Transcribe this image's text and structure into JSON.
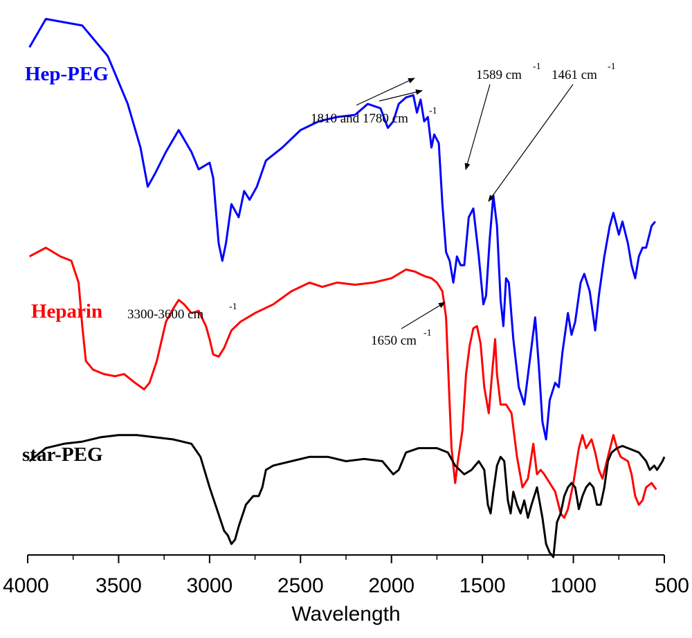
{
  "chart_data": {
    "type": "line",
    "title": "",
    "xlabel": "Wavelength",
    "ylabel": "",
    "xlim": [
      4000,
      500
    ],
    "x_reversed": true,
    "xticks": [
      "4000",
      "3500",
      "3000",
      "2500",
      "2000",
      "1500",
      "1000",
      "500"
    ],
    "grid": false,
    "series": [
      {
        "name": "Hep-PEG",
        "color": "#0000ff",
        "points": [
          [
            3990,
            0.92
          ],
          [
            3900,
            0.985
          ],
          [
            3700,
            0.97
          ],
          [
            3560,
            0.9
          ],
          [
            3450,
            0.79
          ],
          [
            3380,
            0.69
          ],
          [
            3340,
            0.6
          ],
          [
            3300,
            0.63
          ],
          [
            3240,
            0.68
          ],
          [
            3170,
            0.73
          ],
          [
            3100,
            0.68
          ],
          [
            3060,
            0.64
          ],
          [
            3000,
            0.655
          ],
          [
            2980,
            0.62
          ],
          [
            2950,
            0.47
          ],
          [
            2930,
            0.43
          ],
          [
            2910,
            0.47
          ],
          [
            2880,
            0.56
          ],
          [
            2840,
            0.53
          ],
          [
            2810,
            0.59
          ],
          [
            2780,
            0.57
          ],
          [
            2740,
            0.6
          ],
          [
            2690,
            0.66
          ],
          [
            2600,
            0.69
          ],
          [
            2500,
            0.73
          ],
          [
            2400,
            0.75
          ],
          [
            2300,
            0.76
          ],
          [
            2200,
            0.765
          ],
          [
            2130,
            0.79
          ],
          [
            2060,
            0.78
          ],
          [
            2020,
            0.735
          ],
          [
            1990,
            0.75
          ],
          [
            1960,
            0.79
          ],
          [
            1920,
            0.805
          ],
          [
            1880,
            0.81
          ],
          [
            1860,
            0.77
          ],
          [
            1840,
            0.8
          ],
          [
            1820,
            0.75
          ],
          [
            1800,
            0.76
          ],
          [
            1780,
            0.69
          ],
          [
            1765,
            0.72
          ],
          [
            1740,
            0.7
          ],
          [
            1720,
            0.56
          ],
          [
            1700,
            0.45
          ],
          [
            1680,
            0.43
          ],
          [
            1660,
            0.38
          ],
          [
            1640,
            0.44
          ],
          [
            1620,
            0.42
          ],
          [
            1600,
            0.42
          ],
          [
            1575,
            0.53
          ],
          [
            1550,
            0.55
          ],
          [
            1520,
            0.44
          ],
          [
            1495,
            0.33
          ],
          [
            1480,
            0.35
          ],
          [
            1460,
            0.48
          ],
          [
            1440,
            0.58
          ],
          [
            1420,
            0.51
          ],
          [
            1400,
            0.34
          ],
          [
            1385,
            0.28
          ],
          [
            1370,
            0.39
          ],
          [
            1355,
            0.38
          ],
          [
            1330,
            0.25
          ],
          [
            1300,
            0.14
          ],
          [
            1270,
            0.1
          ],
          [
            1240,
            0.2
          ],
          [
            1210,
            0.3
          ],
          [
            1190,
            0.19
          ],
          [
            1170,
            0.06
          ],
          [
            1150,
            0.02
          ],
          [
            1130,
            0.11
          ],
          [
            1100,
            0.15
          ],
          [
            1080,
            0.14
          ],
          [
            1060,
            0.22
          ],
          [
            1030,
            0.31
          ],
          [
            1010,
            0.26
          ],
          [
            990,
            0.29
          ],
          [
            960,
            0.38
          ],
          [
            940,
            0.4
          ],
          [
            910,
            0.36
          ],
          [
            880,
            0.27
          ],
          [
            860,
            0.35
          ],
          [
            830,
            0.44
          ],
          [
            800,
            0.51
          ],
          [
            780,
            0.54
          ],
          [
            750,
            0.49
          ],
          [
            730,
            0.52
          ],
          [
            700,
            0.47
          ],
          [
            680,
            0.42
          ],
          [
            660,
            0.39
          ],
          [
            640,
            0.44
          ],
          [
            620,
            0.46
          ],
          [
            600,
            0.46
          ],
          [
            570,
            0.51
          ],
          [
            550,
            0.52
          ]
        ]
      },
      {
        "name": "Heparin",
        "color": "#ff0000",
        "points": [
          [
            3990,
            0.44
          ],
          [
            3900,
            0.46
          ],
          [
            3820,
            0.44
          ],
          [
            3760,
            0.43
          ],
          [
            3720,
            0.38
          ],
          [
            3700,
            0.28
          ],
          [
            3680,
            0.2
          ],
          [
            3640,
            0.18
          ],
          [
            3580,
            0.17
          ],
          [
            3520,
            0.165
          ],
          [
            3470,
            0.17
          ],
          [
            3410,
            0.15
          ],
          [
            3360,
            0.135
          ],
          [
            3330,
            0.15
          ],
          [
            3290,
            0.2
          ],
          [
            3240,
            0.29
          ],
          [
            3200,
            0.32
          ],
          [
            3170,
            0.34
          ],
          [
            3140,
            0.33
          ],
          [
            3100,
            0.31
          ],
          [
            3060,
            0.315
          ],
          [
            3020,
            0.28
          ],
          [
            3000,
            0.25
          ],
          [
            2980,
            0.215
          ],
          [
            2950,
            0.21
          ],
          [
            2920,
            0.23
          ],
          [
            2880,
            0.27
          ],
          [
            2830,
            0.29
          ],
          [
            2750,
            0.31
          ],
          [
            2650,
            0.33
          ],
          [
            2550,
            0.36
          ],
          [
            2450,
            0.38
          ],
          [
            2380,
            0.37
          ],
          [
            2300,
            0.38
          ],
          [
            2200,
            0.375
          ],
          [
            2100,
            0.38
          ],
          [
            2000,
            0.39
          ],
          [
            1920,
            0.41
          ],
          [
            1870,
            0.405
          ],
          [
            1820,
            0.395
          ],
          [
            1780,
            0.39
          ],
          [
            1750,
            0.38
          ],
          [
            1720,
            0.36
          ],
          [
            1700,
            0.3
          ],
          [
            1690,
            0.2
          ],
          [
            1680,
            0.1
          ],
          [
            1670,
            0.0
          ],
          [
            1650,
            -0.08
          ],
          [
            1635,
            -0.03
          ],
          [
            1610,
            0.04
          ],
          [
            1590,
            0.17
          ],
          [
            1570,
            0.235
          ],
          [
            1550,
            0.275
          ],
          [
            1530,
            0.28
          ],
          [
            1510,
            0.24
          ],
          [
            1490,
            0.14
          ],
          [
            1465,
            0.08
          ],
          [
            1445,
            0.18
          ],
          [
            1430,
            0.25
          ],
          [
            1420,
            0.17
          ],
          [
            1400,
            0.1
          ],
          [
            1370,
            0.1
          ],
          [
            1340,
            0.08
          ],
          [
            1310,
            -0.02
          ],
          [
            1280,
            -0.09
          ],
          [
            1250,
            -0.07
          ],
          [
            1220,
            0.01
          ],
          [
            1200,
            -0.06
          ],
          [
            1180,
            -0.05
          ],
          [
            1160,
            -0.06
          ],
          [
            1130,
            -0.08
          ],
          [
            1100,
            -0.1
          ],
          [
            1070,
            -0.15
          ],
          [
            1050,
            -0.16
          ],
          [
            1030,
            -0.14
          ],
          [
            1000,
            -0.08
          ],
          [
            970,
            0.0
          ],
          [
            950,
            0.03
          ],
          [
            930,
            0.0
          ],
          [
            900,
            0.02
          ],
          [
            880,
            -0.01
          ],
          [
            860,
            -0.05
          ],
          [
            840,
            -0.07
          ],
          [
            810,
            -0.02
          ],
          [
            780,
            0.03
          ],
          [
            760,
            0.0
          ],
          [
            740,
            -0.02
          ],
          [
            700,
            -0.03
          ],
          [
            680,
            -0.06
          ],
          [
            660,
            -0.11
          ],
          [
            640,
            -0.13
          ],
          [
            620,
            -0.12
          ],
          [
            600,
            -0.09
          ],
          [
            570,
            -0.08
          ],
          [
            545,
            -0.095
          ]
        ]
      },
      {
        "name": "star-PEG",
        "color": "#000000",
        "points": [
          [
            3990,
            -0.03
          ],
          [
            3900,
            0.0
          ],
          [
            3800,
            0.01
          ],
          [
            3700,
            0.015
          ],
          [
            3600,
            0.025
          ],
          [
            3500,
            0.03
          ],
          [
            3400,
            0.03
          ],
          [
            3300,
            0.025
          ],
          [
            3200,
            0.02
          ],
          [
            3100,
            0.01
          ],
          [
            3050,
            -0.02
          ],
          [
            3000,
            -0.09
          ],
          [
            2960,
            -0.14
          ],
          [
            2920,
            -0.19
          ],
          [
            2900,
            -0.2
          ],
          [
            2880,
            -0.22
          ],
          [
            2860,
            -0.21
          ],
          [
            2840,
            -0.18
          ],
          [
            2800,
            -0.13
          ],
          [
            2760,
            -0.11
          ],
          [
            2730,
            -0.11
          ],
          [
            2710,
            -0.09
          ],
          [
            2690,
            -0.05
          ],
          [
            2650,
            -0.04
          ],
          [
            2550,
            -0.03
          ],
          [
            2450,
            -0.02
          ],
          [
            2350,
            -0.02
          ],
          [
            2250,
            -0.03
          ],
          [
            2150,
            -0.025
          ],
          [
            2050,
            -0.03
          ],
          [
            1990,
            -0.06
          ],
          [
            1960,
            -0.05
          ],
          [
            1920,
            -0.01
          ],
          [
            1850,
            0.0
          ],
          [
            1750,
            0.0
          ],
          [
            1690,
            -0.01
          ],
          [
            1650,
            -0.04
          ],
          [
            1600,
            -0.06
          ],
          [
            1560,
            -0.05
          ],
          [
            1520,
            -0.03
          ],
          [
            1490,
            -0.05
          ],
          [
            1470,
            -0.13
          ],
          [
            1455,
            -0.15
          ],
          [
            1440,
            -0.1
          ],
          [
            1420,
            -0.04
          ],
          [
            1400,
            -0.02
          ],
          [
            1380,
            -0.03
          ],
          [
            1360,
            -0.12
          ],
          [
            1345,
            -0.15
          ],
          [
            1330,
            -0.1
          ],
          [
            1310,
            -0.13
          ],
          [
            1290,
            -0.15
          ],
          [
            1270,
            -0.12
          ],
          [
            1250,
            -0.16
          ],
          [
            1230,
            -0.13
          ],
          [
            1200,
            -0.09
          ],
          [
            1170,
            -0.16
          ],
          [
            1150,
            -0.22
          ],
          [
            1130,
            -0.24
          ],
          [
            1110,
            -0.25
          ],
          [
            1090,
            -0.17
          ],
          [
            1070,
            -0.15
          ],
          [
            1050,
            -0.11
          ],
          [
            1030,
            -0.09
          ],
          [
            1010,
            -0.08
          ],
          [
            990,
            -0.09
          ],
          [
            970,
            -0.14
          ],
          [
            950,
            -0.11
          ],
          [
            930,
            -0.09
          ],
          [
            910,
            -0.08
          ],
          [
            890,
            -0.09
          ],
          [
            870,
            -0.13
          ],
          [
            850,
            -0.13
          ],
          [
            830,
            -0.09
          ],
          [
            810,
            -0.03
          ],
          [
            790,
            -0.01
          ],
          [
            760,
            0.0
          ],
          [
            730,
            0.005
          ],
          [
            700,
            0.0
          ],
          [
            670,
            -0.005
          ],
          [
            640,
            -0.01
          ],
          [
            620,
            -0.02
          ],
          [
            600,
            -0.03
          ],
          [
            580,
            -0.05
          ],
          [
            555,
            -0.04
          ],
          [
            540,
            -0.05
          ],
          [
            510,
            -0.03
          ],
          [
            500,
            -0.02
          ]
        ]
      }
    ],
    "annotations": [
      {
        "id": "a1810",
        "text": "1810 and 1780 cm",
        "sup": "-1"
      },
      {
        "id": "a1589",
        "text": "1589 cm",
        "sup": "-1"
      },
      {
        "id": "a1461",
        "text": "1461 cm",
        "sup": "-1"
      },
      {
        "id": "a3300",
        "text": "3300-3600 cm",
        "sup": "-1"
      },
      {
        "id": "a1650",
        "text": "1650 cm",
        "sup": "-1"
      }
    ]
  }
}
